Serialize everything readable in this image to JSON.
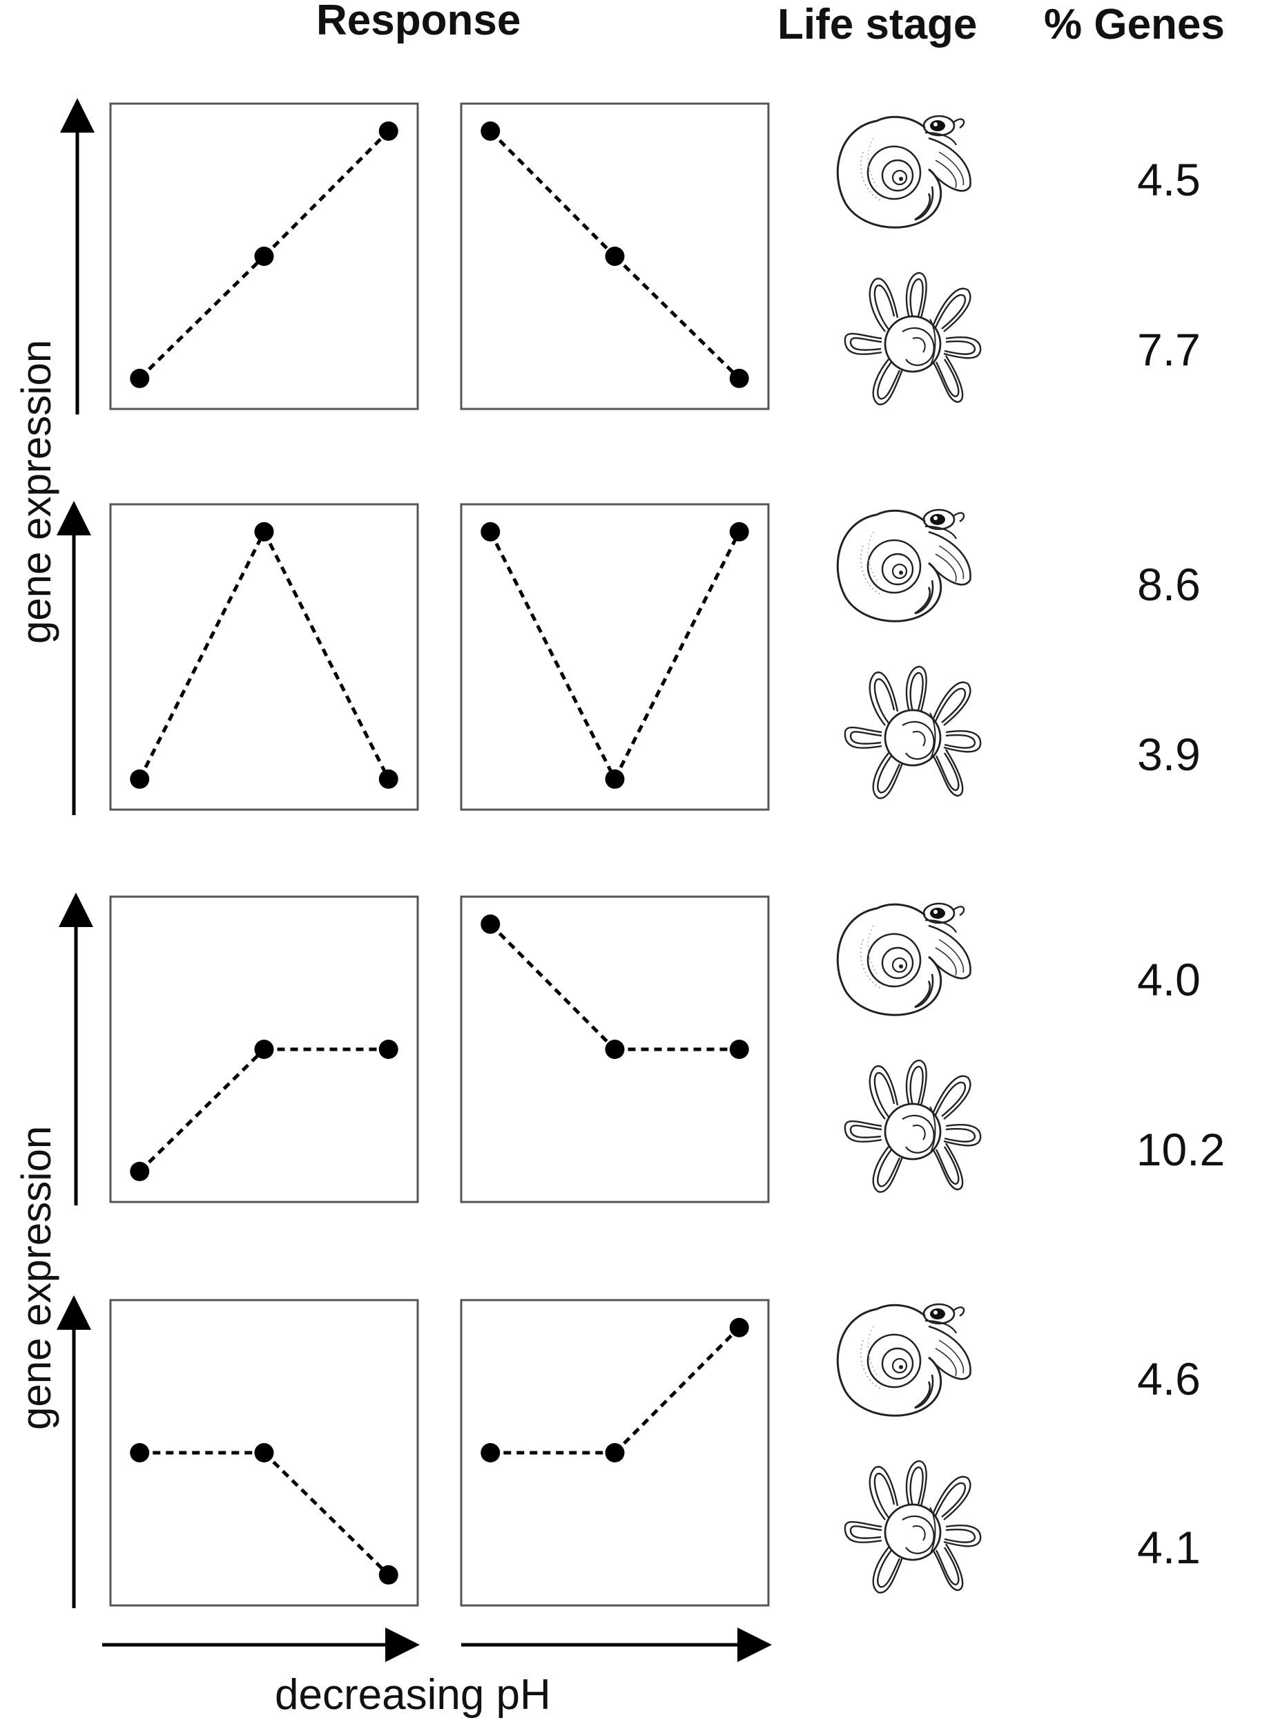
{
  "headers": {
    "response": "Response",
    "life_stage": "Life stage",
    "pct_genes": "% Genes"
  },
  "axes": {
    "y_label_top": "gene expression",
    "y_label_bottom": "gene expression",
    "x_label": "decreasing pH"
  },
  "icons": {
    "adult": "pteropod-adult-icon",
    "larva": "pteropod-larva-icon"
  },
  "chart_data": {
    "type": "line",
    "panels": [
      {
        "row": 1,
        "col": 1,
        "y": [
          1,
          2,
          3
        ]
      },
      {
        "row": 1,
        "col": 2,
        "y": [
          3,
          2,
          1
        ]
      },
      {
        "row": 2,
        "col": 1,
        "y": [
          1,
          3,
          1
        ]
      },
      {
        "row": 2,
        "col": 2,
        "y": [
          3,
          1,
          3
        ]
      },
      {
        "row": 3,
        "col": 1,
        "y": [
          1,
          2,
          2
        ]
      },
      {
        "row": 3,
        "col": 2,
        "y": [
          3,
          2,
          2
        ]
      },
      {
        "row": 4,
        "col": 1,
        "y": [
          2,
          2,
          1
        ]
      },
      {
        "row": 4,
        "col": 2,
        "y": [
          2,
          2,
          3
        ]
      }
    ],
    "percent_genes": [
      {
        "row": 1,
        "adult": "4.5",
        "larva": "7.7"
      },
      {
        "row": 2,
        "adult": "8.6",
        "larva": "3.9"
      },
      {
        "row": 3,
        "adult": "4.0",
        "larva": "10.2"
      },
      {
        "row": 4,
        "adult": "4.6",
        "larva": "4.1"
      }
    ]
  }
}
